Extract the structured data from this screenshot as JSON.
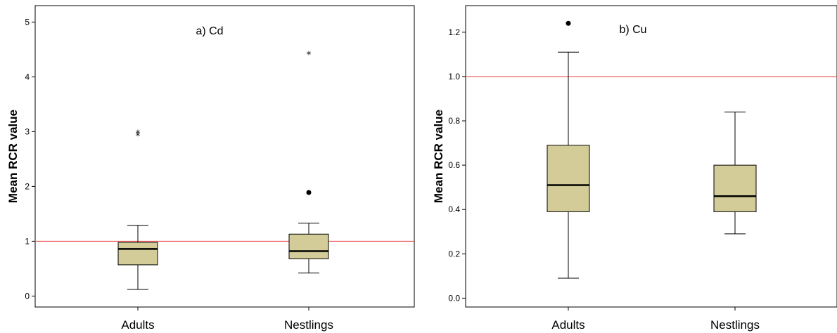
{
  "chart_data": [
    {
      "type": "box",
      "title": "a) Cd",
      "ylabel": "Mean RCR value",
      "xlabel": "",
      "categories": [
        "Adults",
        "Nestlings"
      ],
      "ylim": [
        -0.2,
        5.3
      ],
      "yticks": [
        0,
        1,
        2,
        3,
        4,
        5
      ],
      "ytick_labels": [
        "0",
        "1",
        "2",
        "3",
        "4",
        "5"
      ],
      "reference_line": {
        "y": 1.0,
        "color": "#e8413c"
      },
      "box_color": "#d3cc98",
      "grid": false,
      "boxes": [
        {
          "category": "Adults",
          "whisker_low": 0.12,
          "q1": 0.57,
          "median": 0.86,
          "q3": 0.98,
          "whisker_high": 1.29,
          "outliers": [],
          "extremes": [
            2.93,
            2.97
          ]
        },
        {
          "category": "Nestlings",
          "whisker_low": 0.42,
          "q1": 0.68,
          "median": 0.82,
          "q3": 1.13,
          "whisker_high": 1.33,
          "outliers": [
            1.89
          ],
          "extremes": [
            4.41
          ]
        }
      ]
    },
    {
      "type": "box",
      "title": "b) Cu",
      "ylabel": "Mean RCR value",
      "xlabel": "",
      "categories": [
        "Adults",
        "Nestlings"
      ],
      "ylim": [
        -0.04,
        1.32
      ],
      "yticks": [
        0.0,
        0.2,
        0.4,
        0.6,
        0.8,
        1.0,
        1.2
      ],
      "ytick_labels": [
        "0.0",
        "0.2",
        "0.4",
        "0.6",
        "0.8",
        "1.0",
        "1.2"
      ],
      "reference_line": {
        "y": 1.0,
        "color": "#e8413c"
      },
      "box_color": "#d3cc98",
      "grid": false,
      "boxes": [
        {
          "category": "Adults",
          "whisker_low": 0.09,
          "q1": 0.39,
          "median": 0.51,
          "q3": 0.69,
          "whisker_high": 1.11,
          "outliers": [
            1.24
          ],
          "extremes": []
        },
        {
          "category": "Nestlings",
          "whisker_low": 0.29,
          "q1": 0.39,
          "median": 0.46,
          "q3": 0.6,
          "whisker_high": 0.84,
          "outliers": [],
          "extremes": []
        }
      ]
    }
  ]
}
